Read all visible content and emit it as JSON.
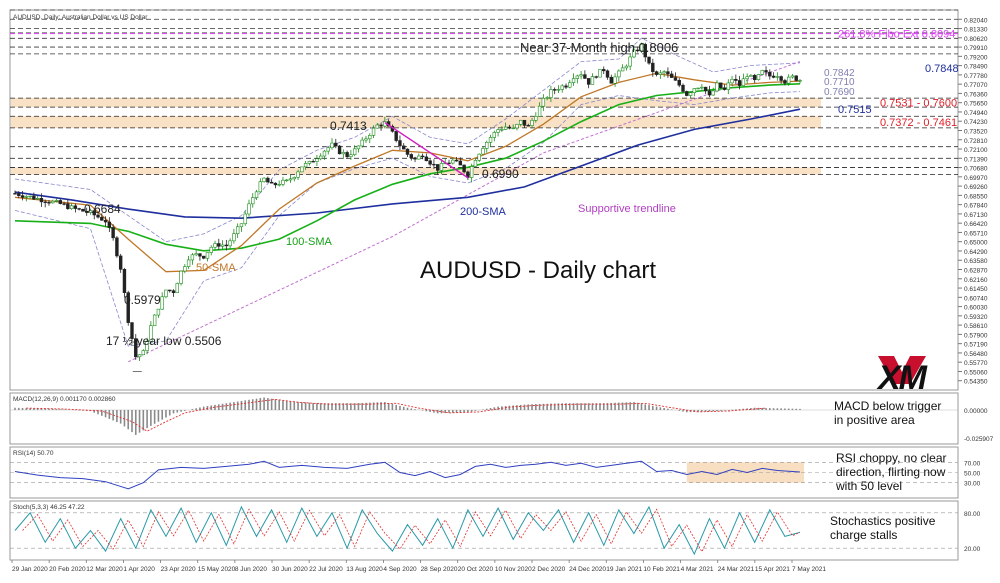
{
  "chart_data": {
    "type": "candlestick",
    "symbol_line": "AUDUSD, Daily: Australian Dollar vs US Dollar",
    "title": "AUDUSD - Daily chart",
    "logo": "XM",
    "price_axis_ticks": [
      "0.82750",
      "0.82040",
      "0.81330",
      "0.80620",
      "0.79910",
      "0.79200",
      "0.78490",
      "0.77780",
      "0.77070",
      "0.76360",
      "0.75650",
      "0.74940",
      "0.74230",
      "0.73520",
      "0.72810",
      "0.72100",
      "0.71390",
      "0.70680",
      "0.69970",
      "0.69260",
      "0.68550",
      "0.67840",
      "0.67130",
      "0.66420",
      "0.65710",
      "0.65000",
      "0.64290",
      "0.63580",
      "0.62870",
      "0.62160",
      "0.61450",
      "0.60740",
      "0.60030",
      "0.59320",
      "0.58610",
      "0.57900",
      "0.57190",
      "0.56480",
      "0.55770",
      "0.55060",
      "0.54350",
      "0.53640"
    ],
    "date_labels": [
      "29 Jan 2020",
      "20 Feb 2020",
      "12 Mar 2020",
      "1 Apr 2020",
      "23 Apr 2020",
      "15 May 2020",
      "8 Jun 2020",
      "30 Jun 2020",
      "22 Jul 2020",
      "13 Aug 2020",
      "4 Sep 2020",
      "28 Sep 2020",
      "20 Oct 2020",
      "10 Nov 2020",
      "2 Dec 2020",
      "24 Dec 2020",
      "19 Jan 2021",
      "10 Feb 2021",
      "4 Mar 2021",
      "24 Mar 2021",
      "15 Apr 2021",
      "7 May 2021"
    ],
    "key_prices": [
      {
        "value": 0.8094,
        "text": "261.8% Fibo Ext 0.8094",
        "color": "#e040fb"
      },
      {
        "value": 0.7848,
        "text": "0.7848",
        "color": "#1f2f9e"
      },
      {
        "value": 0.7842,
        "text": "0.7842",
        "color": "#8080b0"
      },
      {
        "value": 0.771,
        "text": "0.7710",
        "color": "#8080b0"
      },
      {
        "value": 0.769,
        "text": "0.7690",
        "color": "#8080b0"
      },
      {
        "value": 0.7515,
        "text": "0.7515",
        "color": "#1f2f9e"
      }
    ],
    "zones": [
      {
        "from": 0.7531,
        "to": 0.76,
        "text": "0.7531 - 0.7600",
        "color": "#e0202a"
      },
      {
        "from": 0.7372,
        "to": 0.7461,
        "text": "0.7372 - 0.7461",
        "color": "#e0202a"
      },
      {
        "from": 0.7015,
        "to": 0.7069,
        "text": "",
        "color": ""
      }
    ],
    "annotations": [
      {
        "text": "Near 37-Month high 0.8006",
        "color": "#222222"
      },
      {
        "text": "0.7413",
        "color": "#222222"
      },
      {
        "text": "0.6990",
        "color": "#222222"
      },
      {
        "text": "0.6684",
        "color": "#222222"
      },
      {
        "text": "0.5979",
        "color": "#222222"
      },
      {
        "text": "17 ½-year low 0.5506",
        "color": "#222222"
      },
      {
        "text": "200-SMA",
        "color": "#1f2f9e"
      },
      {
        "text": "100-SMA",
        "color": "#18a018"
      },
      {
        "text": "50-SMA",
        "color": "#c07828"
      },
      {
        "text": "Supportive trendline",
        "color": "#b040c0"
      }
    ],
    "indicators": [
      {
        "name": "MACD(12,26,9) 0.001170 0.002860",
        "ticks": [
          "0.00000",
          "-0.025907"
        ],
        "comment": "MACD below trigger\nin positive area"
      },
      {
        "name": "RSI(14) 50.70",
        "ticks": [
          "70.00",
          "50.00",
          "30.00"
        ],
        "comment": "RSI choppy, no clear\ndirection, flirting now\nwith 50 level"
      },
      {
        "name": "Stoch(5,3,3) 46.25 47.22",
        "ticks": [
          "80.00",
          "20.00"
        ],
        "comment": "Stochastics positive\ncharge stalls"
      }
    ],
    "price_path": [
      [
        0,
        0.687
      ],
      [
        6,
        0.683
      ],
      [
        12,
        0.679
      ],
      [
        16,
        0.675
      ],
      [
        20,
        0.672
      ],
      [
        24,
        0.666
      ],
      [
        26,
        0.652
      ],
      [
        28,
        0.63
      ],
      [
        30,
        0.59
      ],
      [
        32,
        0.562
      ],
      [
        34,
        0.565
      ],
      [
        36,
        0.585
      ],
      [
        38,
        0.6
      ],
      [
        40,
        0.613
      ],
      [
        42,
        0.612
      ],
      [
        44,
        0.627
      ],
      [
        46,
        0.638
      ],
      [
        48,
        0.64
      ],
      [
        50,
        0.639
      ],
      [
        52,
        0.646
      ],
      [
        54,
        0.648
      ],
      [
        56,
        0.647
      ],
      [
        58,
        0.655
      ],
      [
        60,
        0.664
      ],
      [
        62,
        0.678
      ],
      [
        64,
        0.69
      ],
      [
        66,
        0.698
      ],
      [
        68,
        0.693
      ],
      [
        70,
        0.695
      ],
      [
        72,
        0.696
      ],
      [
        74,
        0.701
      ],
      [
        76,
        0.708
      ],
      [
        78,
        0.71
      ],
      [
        80,
        0.715
      ],
      [
        82,
        0.72
      ],
      [
        84,
        0.724
      ],
      [
        86,
        0.719
      ],
      [
        88,
        0.716
      ],
      [
        90,
        0.72
      ],
      [
        92,
        0.726
      ],
      [
        94,
        0.733
      ],
      [
        96,
        0.739
      ],
      [
        98,
        0.741
      ],
      [
        100,
        0.733
      ],
      [
        102,
        0.724
      ],
      [
        104,
        0.717
      ],
      [
        106,
        0.713
      ],
      [
        108,
        0.717
      ],
      [
        110,
        0.711
      ],
      [
        112,
        0.706
      ],
      [
        114,
        0.71
      ],
      [
        116,
        0.712
      ],
      [
        118,
        0.708
      ],
      [
        120,
        0.701
      ],
      [
        122,
        0.714
      ],
      [
        124,
        0.723
      ],
      [
        126,
        0.73
      ],
      [
        128,
        0.736
      ],
      [
        130,
        0.738
      ],
      [
        132,
        0.736
      ],
      [
        134,
        0.742
      ],
      [
        136,
        0.738
      ],
      [
        138,
        0.748
      ],
      [
        140,
        0.758
      ],
      [
        142,
        0.765
      ],
      [
        144,
        0.768
      ],
      [
        146,
        0.77
      ],
      [
        148,
        0.777
      ],
      [
        150,
        0.779
      ],
      [
        152,
        0.772
      ],
      [
        154,
        0.778
      ],
      [
        156,
        0.782
      ],
      [
        158,
        0.773
      ],
      [
        160,
        0.779
      ],
      [
        162,
        0.786
      ],
      [
        164,
        0.795
      ],
      [
        166,
        0.8
      ],
      [
        168,
        0.785
      ],
      [
        170,
        0.777
      ],
      [
        172,
        0.78
      ],
      [
        174,
        0.775
      ],
      [
        176,
        0.77
      ],
      [
        178,
        0.763
      ],
      [
        180,
        0.768
      ],
      [
        182,
        0.77
      ],
      [
        184,
        0.761
      ],
      [
        186,
        0.77
      ],
      [
        188,
        0.766
      ],
      [
        190,
        0.775
      ],
      [
        192,
        0.77
      ],
      [
        194,
        0.778
      ],
      [
        196,
        0.773
      ],
      [
        198,
        0.78
      ],
      [
        200,
        0.777
      ],
      [
        202,
        0.778
      ],
      [
        204,
        0.773
      ],
      [
        206,
        0.776
      ],
      [
        208,
        0.774
      ]
    ],
    "sma50_path": [
      [
        0,
        0.684
      ],
      [
        20,
        0.678
      ],
      [
        30,
        0.652
      ],
      [
        40,
        0.627
      ],
      [
        50,
        0.628
      ],
      [
        60,
        0.647
      ],
      [
        70,
        0.675
      ],
      [
        80,
        0.695
      ],
      [
        90,
        0.708
      ],
      [
        100,
        0.72
      ],
      [
        110,
        0.718
      ],
      [
        120,
        0.712
      ],
      [
        130,
        0.723
      ],
      [
        140,
        0.74
      ],
      [
        150,
        0.761
      ],
      [
        160,
        0.772
      ],
      [
        170,
        0.779
      ],
      [
        180,
        0.774
      ],
      [
        190,
        0.77
      ],
      [
        200,
        0.772
      ],
      [
        208,
        0.773
      ]
    ],
    "sma100_path": [
      [
        0,
        0.666
      ],
      [
        20,
        0.664
      ],
      [
        30,
        0.658
      ],
      [
        40,
        0.648
      ],
      [
        50,
        0.643
      ],
      [
        60,
        0.645
      ],
      [
        70,
        0.652
      ],
      [
        80,
        0.666
      ],
      [
        90,
        0.682
      ],
      [
        100,
        0.694
      ],
      [
        110,
        0.702
      ],
      [
        120,
        0.707
      ],
      [
        130,
        0.714
      ],
      [
        140,
        0.727
      ],
      [
        150,
        0.742
      ],
      [
        160,
        0.755
      ],
      [
        170,
        0.762
      ],
      [
        180,
        0.765
      ],
      [
        190,
        0.768
      ],
      [
        200,
        0.77
      ],
      [
        208,
        0.771
      ]
    ],
    "sma200_path": [
      [
        0,
        0.688
      ],
      [
        15,
        0.682
      ],
      [
        30,
        0.675
      ],
      [
        45,
        0.669
      ],
      [
        60,
        0.668
      ],
      [
        80,
        0.672
      ],
      [
        100,
        0.679
      ],
      [
        120,
        0.684
      ],
      [
        135,
        0.692
      ],
      [
        150,
        0.708
      ],
      [
        165,
        0.724
      ],
      [
        180,
        0.736
      ],
      [
        195,
        0.744
      ],
      [
        208,
        0.7515
      ]
    ],
    "trendline_path": [
      [
        30,
        0.558
      ],
      [
        100,
        0.654
      ],
      [
        140,
        0.718
      ],
      [
        208,
        0.788
      ]
    ],
    "bands_upper": [
      [
        0,
        0.698
      ],
      [
        20,
        0.69
      ],
      [
        30,
        0.67
      ],
      [
        40,
        0.65
      ],
      [
        50,
        0.656
      ],
      [
        60,
        0.67
      ],
      [
        70,
        0.705
      ],
      [
        80,
        0.72
      ],
      [
        90,
        0.73
      ],
      [
        100,
        0.746
      ],
      [
        110,
        0.73
      ],
      [
        120,
        0.725
      ],
      [
        130,
        0.744
      ],
      [
        140,
        0.766
      ],
      [
        150,
        0.788
      ],
      [
        160,
        0.79
      ],
      [
        166,
        0.806
      ],
      [
        175,
        0.793
      ],
      [
        185,
        0.78
      ],
      [
        195,
        0.785
      ],
      [
        208,
        0.787
      ]
    ],
    "bands_lower": [
      [
        0,
        0.674
      ],
      [
        20,
        0.66
      ],
      [
        30,
        0.57
      ],
      [
        40,
        0.574
      ],
      [
        50,
        0.62
      ],
      [
        60,
        0.63
      ],
      [
        70,
        0.67
      ],
      [
        80,
        0.695
      ],
      [
        90,
        0.706
      ],
      [
        100,
        0.714
      ],
      [
        110,
        0.7
      ],
      [
        120,
        0.695
      ],
      [
        130,
        0.706
      ],
      [
        140,
        0.726
      ],
      [
        150,
        0.755
      ],
      [
        160,
        0.762
      ],
      [
        170,
        0.758
      ],
      [
        180,
        0.755
      ],
      [
        190,
        0.76
      ],
      [
        200,
        0.764
      ],
      [
        208,
        0.765
      ]
    ],
    "macd_series": [
      [
        0,
        0.002
      ],
      [
        10,
        0.001
      ],
      [
        20,
        -0.001
      ],
      [
        28,
        -0.012
      ],
      [
        32,
        -0.022
      ],
      [
        36,
        -0.014
      ],
      [
        42,
        -0.003
      ],
      [
        50,
        0.003
      ],
      [
        60,
        0.008
      ],
      [
        66,
        0.011
      ],
      [
        72,
        0.008
      ],
      [
        80,
        0.006
      ],
      [
        90,
        0.006
      ],
      [
        98,
        0.007
      ],
      [
        104,
        0.002
      ],
      [
        112,
        -0.003
      ],
      [
        120,
        -0.002
      ],
      [
        128,
        0.003
      ],
      [
        136,
        0.005
      ],
      [
        146,
        0.006
      ],
      [
        156,
        0.006
      ],
      [
        164,
        0.007
      ],
      [
        170,
        0.003
      ],
      [
        178,
        -0.002
      ],
      [
        186,
        -0.001
      ],
      [
        196,
        0.002
      ],
      [
        208,
        0.001
      ]
    ],
    "rsi_series": [
      [
        0,
        52
      ],
      [
        6,
        45
      ],
      [
        12,
        40
      ],
      [
        18,
        38
      ],
      [
        24,
        32
      ],
      [
        30,
        18
      ],
      [
        34,
        30
      ],
      [
        38,
        55
      ],
      [
        44,
        60
      ],
      [
        50,
        58
      ],
      [
        56,
        62
      ],
      [
        62,
        66
      ],
      [
        66,
        72
      ],
      [
        70,
        60
      ],
      [
        76,
        64
      ],
      [
        82,
        60
      ],
      [
        88,
        58
      ],
      [
        94,
        66
      ],
      [
        98,
        70
      ],
      [
        102,
        50
      ],
      [
        106,
        44
      ],
      [
        110,
        52
      ],
      [
        114,
        40
      ],
      [
        118,
        46
      ],
      [
        122,
        62
      ],
      [
        126,
        66
      ],
      [
        130,
        60
      ],
      [
        134,
        64
      ],
      [
        138,
        66
      ],
      [
        142,
        70
      ],
      [
        146,
        64
      ],
      [
        150,
        68
      ],
      [
        154,
        60
      ],
      [
        158,
        64
      ],
      [
        162,
        68
      ],
      [
        166,
        72
      ],
      [
        170,
        52
      ],
      [
        174,
        54
      ],
      [
        178,
        46
      ],
      [
        182,
        52
      ],
      [
        186,
        46
      ],
      [
        190,
        56
      ],
      [
        194,
        50
      ],
      [
        198,
        58
      ],
      [
        202,
        54
      ],
      [
        206,
        52
      ],
      [
        208,
        51
      ]
    ],
    "stoch_series": [
      [
        0,
        50
      ],
      [
        4,
        80
      ],
      [
        8,
        30
      ],
      [
        12,
        70
      ],
      [
        16,
        20
      ],
      [
        20,
        50
      ],
      [
        24,
        15
      ],
      [
        28,
        70
      ],
      [
        32,
        20
      ],
      [
        36,
        85
      ],
      [
        40,
        40
      ],
      [
        44,
        88
      ],
      [
        48,
        30
      ],
      [
        52,
        80
      ],
      [
        56,
        25
      ],
      [
        60,
        90
      ],
      [
        64,
        40
      ],
      [
        68,
        85
      ],
      [
        72,
        30
      ],
      [
        76,
        88
      ],
      [
        80,
        40
      ],
      [
        84,
        80
      ],
      [
        88,
        20
      ],
      [
        92,
        85
      ],
      [
        96,
        45
      ],
      [
        100,
        15
      ],
      [
        104,
        60
      ],
      [
        108,
        25
      ],
      [
        112,
        70
      ],
      [
        116,
        20
      ],
      [
        120,
        85
      ],
      [
        124,
        40
      ],
      [
        128,
        88
      ],
      [
        132,
        35
      ],
      [
        136,
        80
      ],
      [
        140,
        50
      ],
      [
        144,
        85
      ],
      [
        148,
        30
      ],
      [
        152,
        80
      ],
      [
        156,
        25
      ],
      [
        160,
        85
      ],
      [
        164,
        45
      ],
      [
        168,
        90
      ],
      [
        172,
        20
      ],
      [
        176,
        60
      ],
      [
        180,
        10
      ],
      [
        184,
        70
      ],
      [
        188,
        20
      ],
      [
        192,
        80
      ],
      [
        196,
        30
      ],
      [
        200,
        85
      ],
      [
        204,
        40
      ],
      [
        208,
        47
      ]
    ]
  }
}
